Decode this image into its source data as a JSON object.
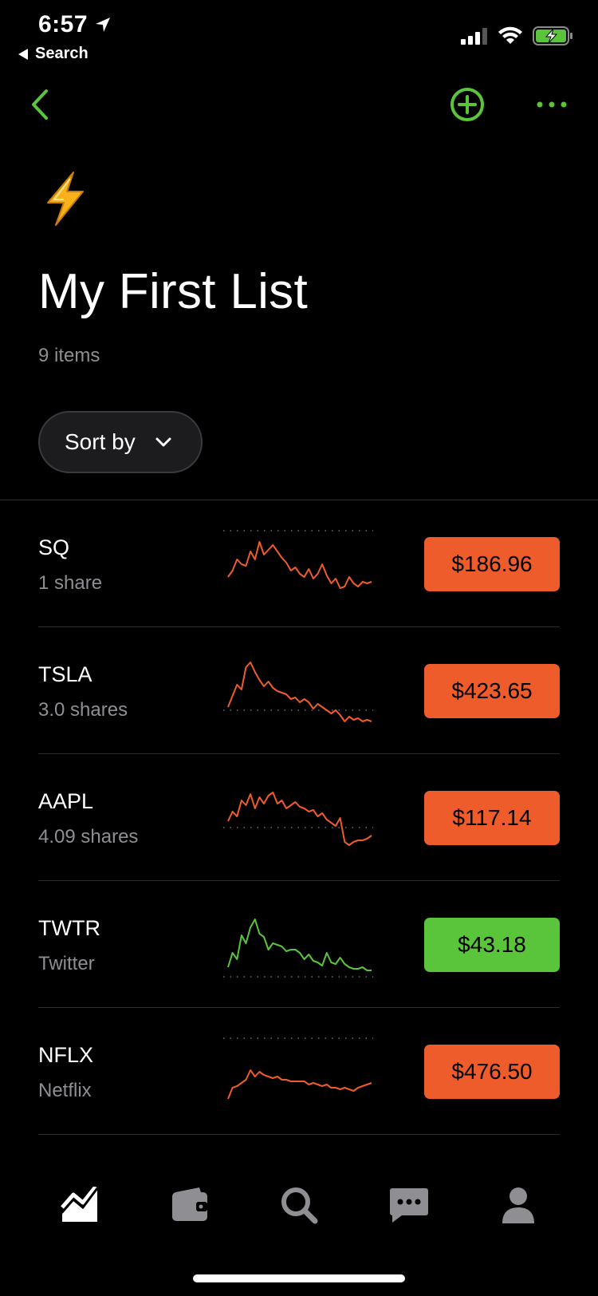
{
  "status": {
    "time": "6:57",
    "back_app": "Search"
  },
  "colors": {
    "accent": "#5ac53b",
    "negative": "#ef5c2b",
    "positive": "#5ac53b",
    "muted": "#8e8e93"
  },
  "header": {
    "emoji": "⚡",
    "title": "My First List",
    "count": "9 items"
  },
  "sort": {
    "label": "Sort by"
  },
  "items": [
    {
      "ticker": "SQ",
      "sub": "1 share",
      "price": "$186.96",
      "trend": "down",
      "spark": [
        58,
        50,
        36,
        42,
        44,
        26,
        36,
        14,
        30,
        24,
        18,
        26,
        34,
        40,
        50,
        46,
        54,
        58,
        48,
        60,
        54,
        42,
        56,
        66,
        60,
        72,
        70,
        58,
        66,
        70,
        64,
        66,
        64
      ]
    },
    {
      "ticker": "TSLA",
      "sub": "3.0 shares",
      "price": "$423.65",
      "trend": "down",
      "spark": [
        62,
        48,
        34,
        40,
        12,
        6,
        18,
        28,
        36,
        30,
        38,
        42,
        44,
        46,
        52,
        50,
        56,
        52,
        56,
        64,
        58,
        62,
        66,
        70,
        66,
        72,
        80,
        74,
        78,
        76,
        80,
        78,
        80
      ]
    },
    {
      "ticker": "AAPL",
      "sub": "4.09 shares",
      "price": "$117.14",
      "trend": "down",
      "spark": [
        46,
        34,
        40,
        20,
        26,
        12,
        30,
        16,
        24,
        14,
        10,
        24,
        20,
        30,
        26,
        22,
        28,
        30,
        34,
        32,
        40,
        36,
        44,
        48,
        52,
        42,
        72,
        76,
        72,
        70,
        70,
        68,
        64
      ]
    },
    {
      "ticker": "TWTR",
      "sub": "Twitter",
      "price": "$43.18",
      "trend": "up",
      "spark": [
        70,
        52,
        60,
        30,
        40,
        20,
        10,
        28,
        32,
        48,
        40,
        42,
        44,
        50,
        48,
        48,
        52,
        60,
        54,
        62,
        64,
        68,
        52,
        64,
        66,
        58,
        66,
        70,
        72,
        72,
        70,
        74,
        74
      ]
    },
    {
      "ticker": "NFLX",
      "sub": "Netflix",
      "price": "$476.50",
      "trend": "down",
      "spark": [
        76,
        62,
        60,
        56,
        52,
        40,
        48,
        42,
        46,
        48,
        50,
        48,
        52,
        52,
        54,
        54,
        54,
        54,
        58,
        56,
        58,
        60,
        58,
        62,
        62,
        64,
        62,
        64,
        66,
        62,
        60,
        58,
        56
      ]
    }
  ],
  "tabs": [
    "chart-icon",
    "wallet-icon",
    "search-icon",
    "messages-icon",
    "profile-icon"
  ]
}
